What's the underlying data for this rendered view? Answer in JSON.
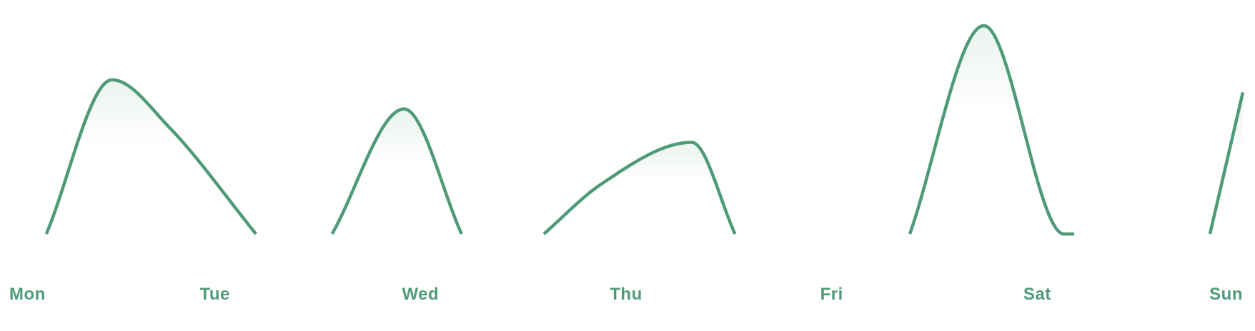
{
  "colors": {
    "line": "#4f9a78",
    "fill_top": "#e6f1ea",
    "label": "#4f9a78"
  },
  "chart_data": {
    "type": "area",
    "title": "",
    "xlabel": "",
    "ylabel": "",
    "categories": [
      "Mon",
      "Tue",
      "Wed",
      "Thu",
      "Fri",
      "Sat",
      "Sun"
    ],
    "x_domain": [
      0,
      6
    ],
    "ylim": [
      0,
      100
    ],
    "grid": false,
    "legend": "none",
    "segments": [
      [
        [
          0.18,
          0
        ],
        [
          0.5,
          74
        ],
        [
          0.78,
          51
        ],
        [
          1.2,
          0
        ]
      ],
      [
        [
          1.57,
          0
        ],
        [
          1.92,
          60
        ],
        [
          2.2,
          0
        ]
      ],
      [
        [
          2.6,
          0
        ],
        [
          2.88,
          24
        ],
        [
          3.32,
          44
        ],
        [
          3.53,
          0
        ]
      ],
      [
        [
          4.38,
          0
        ],
        [
          4.74,
          100
        ],
        [
          5.13,
          0
        ],
        [
          5.18,
          0
        ]
      ],
      [
        [
          5.84,
          0
        ],
        [
          6.0,
          68
        ]
      ]
    ]
  }
}
